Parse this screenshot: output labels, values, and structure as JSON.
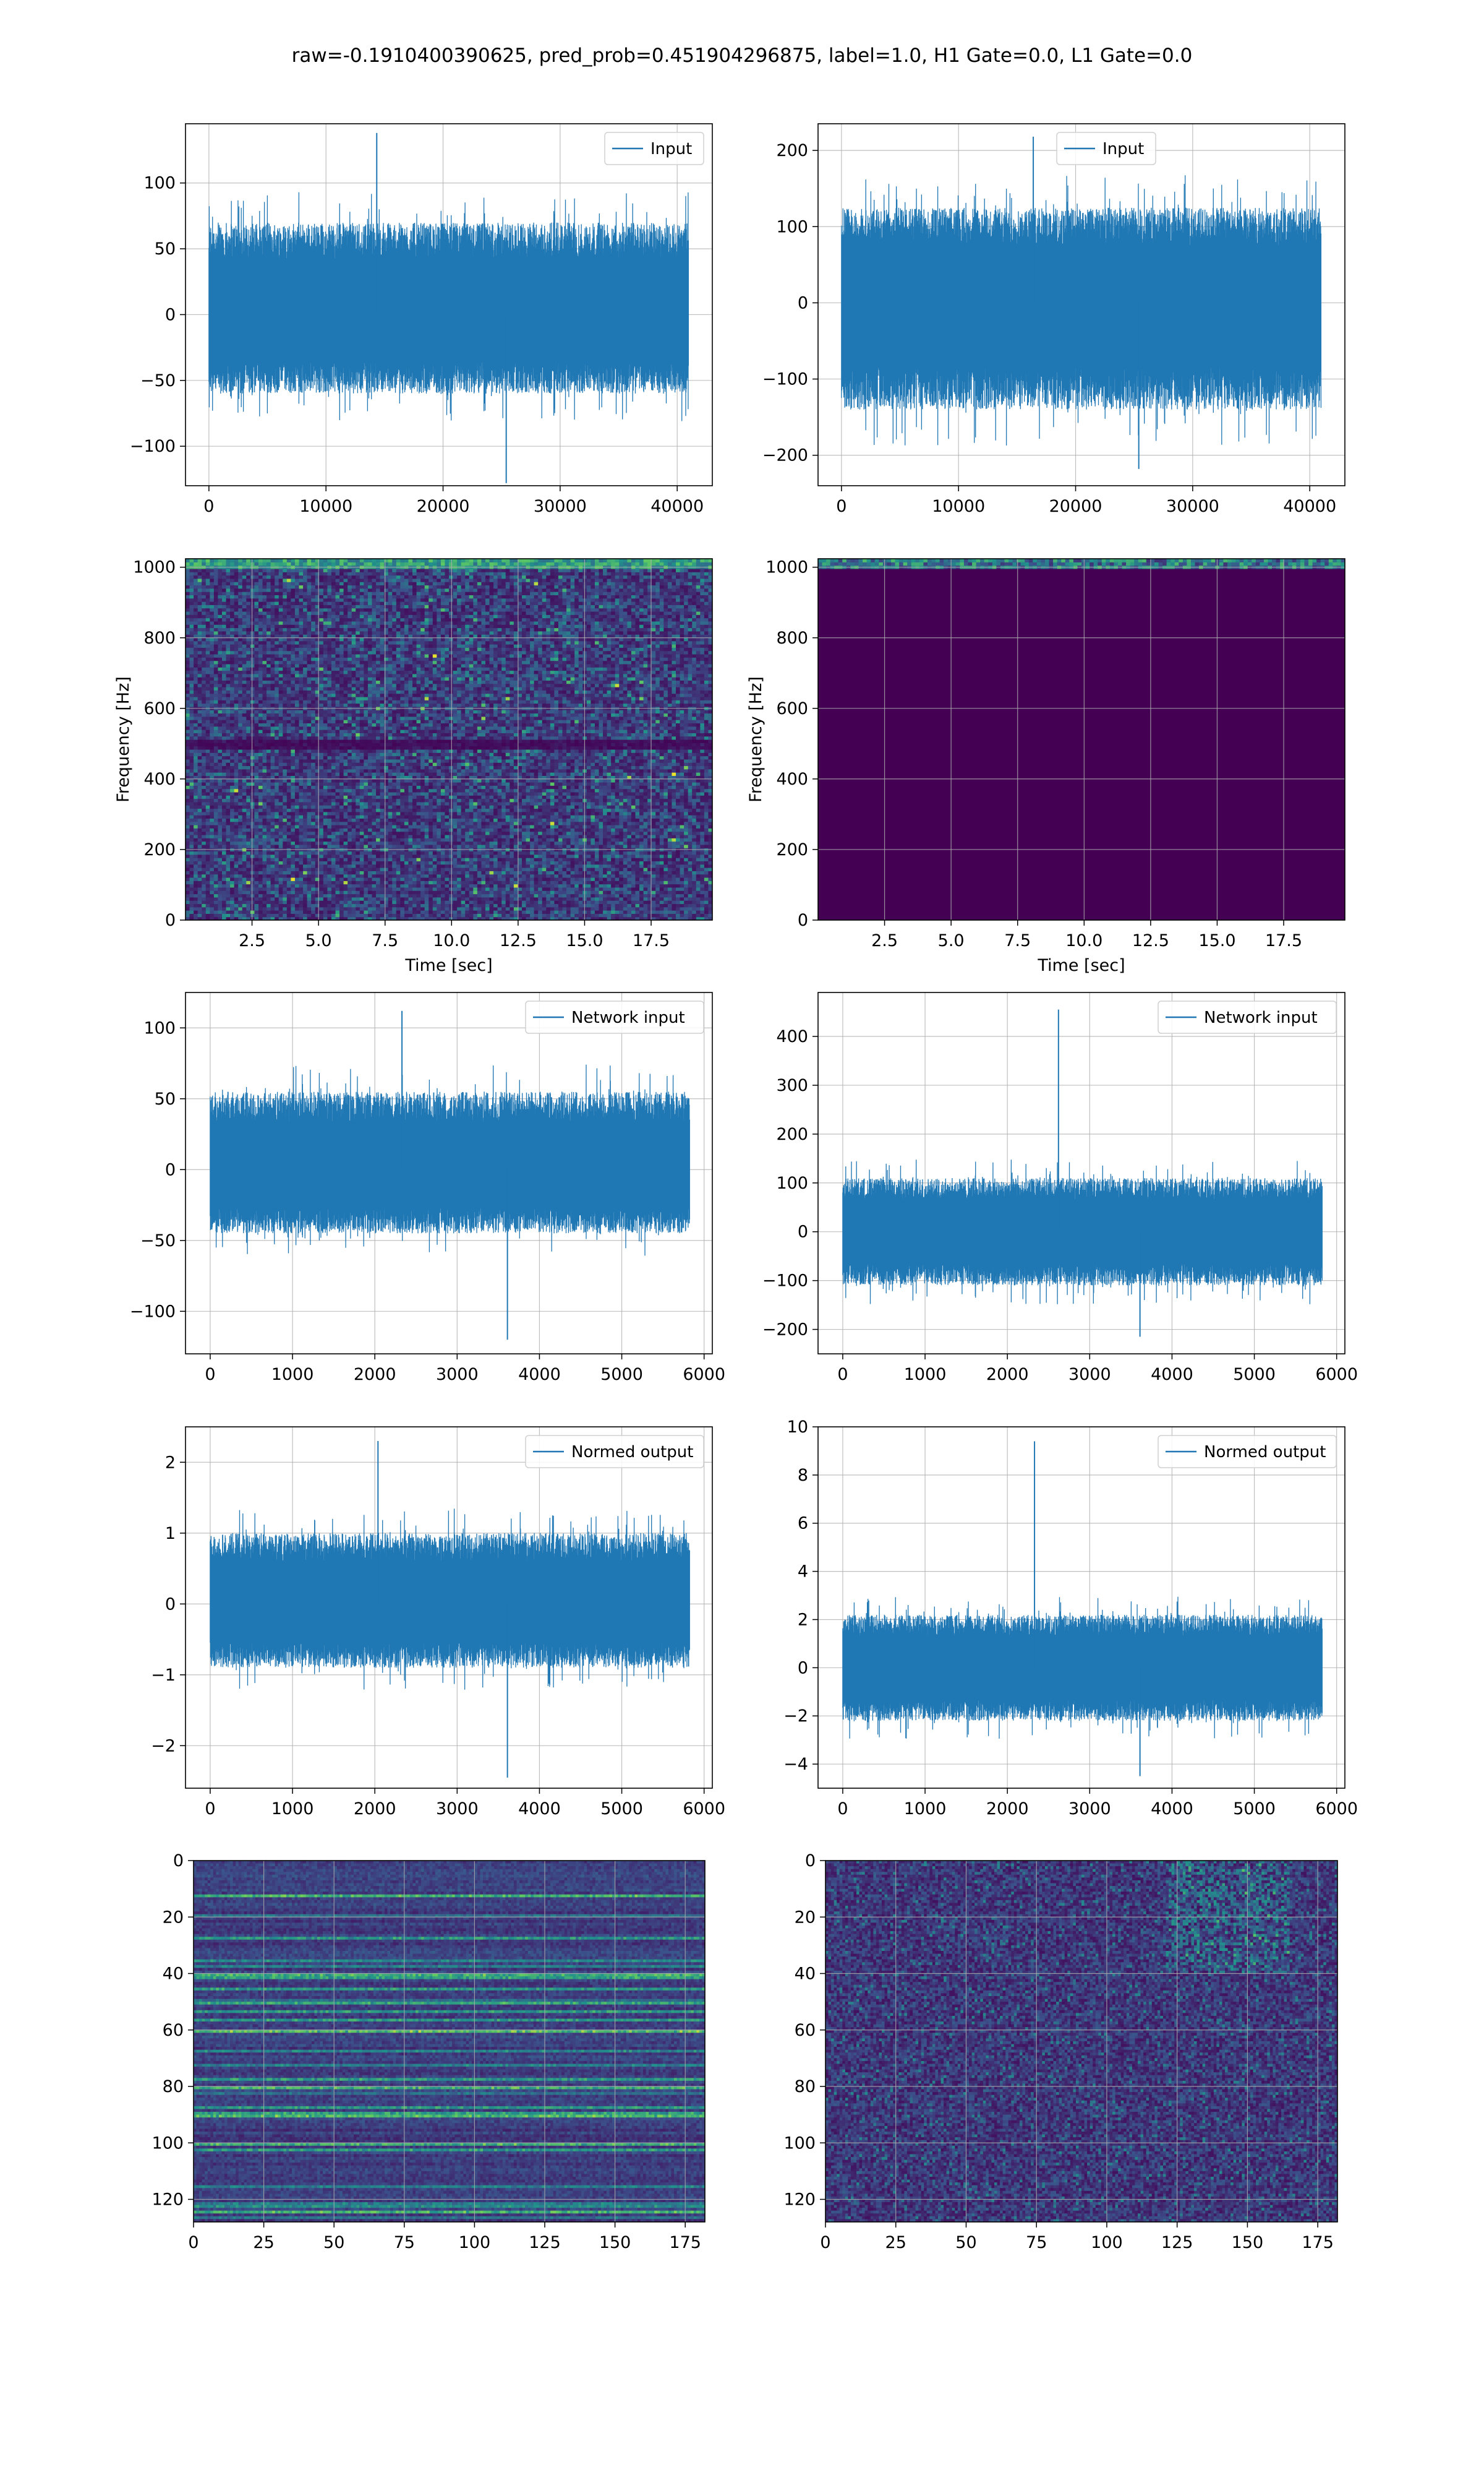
{
  "figure_title": "raw=-0.1910400390625, pred_prob=0.451904296875, label=1.0, H1 Gate=0.0, L1 Gate=0.0",
  "colors": {
    "line": "#1f77b4",
    "grid": "#b0b0b0",
    "viridis_low": "#440154",
    "viridis_mid": "#21918c",
    "viridis_high": "#fde725"
  },
  "chart_data": [
    {
      "id": "h1-input",
      "type": "line",
      "legend": "Input",
      "legend_pos": "top-right",
      "xlim": [
        -2000,
        43000
      ],
      "ylim": [
        -130,
        145
      ],
      "xticks": [
        0,
        10000,
        20000,
        30000,
        40000
      ],
      "yticks": [
        -100,
        -50,
        0,
        50,
        100
      ],
      "series": [
        {
          "x_range": [
            0,
            40960
          ],
          "envelope_typical": [
            -60,
            70
          ],
          "peak_max": 138,
          "peak_min": -128,
          "start_mean": 0,
          "end_mean": 0
        }
      ]
    },
    {
      "id": "l1-input",
      "type": "line",
      "legend": "Input",
      "legend_pos": "top-center",
      "xlim": [
        -2000,
        43000
      ],
      "ylim": [
        -240,
        235
      ],
      "xticks": [
        0,
        10000,
        20000,
        30000,
        40000
      ],
      "yticks": [
        -200,
        -100,
        0,
        100,
        200
      ],
      "series": [
        {
          "x_range": [
            0,
            40960
          ],
          "envelope_typical": [
            -140,
            125
          ],
          "peak_max": 218,
          "peak_min": -218
        }
      ]
    },
    {
      "id": "h1-spectrogram",
      "type": "heatmap",
      "xlabel": "Time [sec]",
      "ylabel": "Frequency [Hz]",
      "xlim": [
        0,
        19.8
      ],
      "ylim": [
        0,
        1024
      ],
      "xticks": [
        2.5,
        5.0,
        7.5,
        10.0,
        12.5,
        15.0,
        17.5
      ],
      "yticks": [
        0,
        200,
        400,
        600,
        800,
        1000
      ],
      "features": {
        "dark_band_hz": 500,
        "top_band_hz": 1010,
        "pattern": "speckled noise"
      }
    },
    {
      "id": "l1-spectrogram",
      "type": "heatmap",
      "xlabel": "Time [sec]",
      "ylabel": "Frequency [Hz]",
      "xlim": [
        0,
        19.8
      ],
      "ylim": [
        0,
        1024
      ],
      "xticks": [
        2.5,
        5.0,
        7.5,
        10.0,
        12.5,
        15.0,
        17.5
      ],
      "yticks": [
        0,
        200,
        400,
        600,
        800,
        1000
      ],
      "features": {
        "top_band_hz": 1010,
        "pattern": "uniform low"
      }
    },
    {
      "id": "h1-network-input",
      "type": "line",
      "legend": "Network input",
      "legend_pos": "top-right",
      "xlim": [
        -300,
        6100
      ],
      "ylim": [
        -130,
        125
      ],
      "xticks": [
        0,
        1000,
        2000,
        3000,
        4000,
        5000,
        6000
      ],
      "yticks": [
        -100,
        -50,
        0,
        50,
        100
      ],
      "series": [
        {
          "x_range": [
            0,
            5824
          ],
          "envelope_typical": [
            -45,
            55
          ],
          "peak_max": 112,
          "peak_min": -120
        }
      ]
    },
    {
      "id": "l1-network-input",
      "type": "line",
      "legend": "Network input",
      "legend_pos": "top-right",
      "xlim": [
        -300,
        6100
      ],
      "ylim": [
        -250,
        490
      ],
      "xticks": [
        0,
        1000,
        2000,
        3000,
        4000,
        5000,
        6000
      ],
      "yticks": [
        -200,
        -100,
        0,
        100,
        200,
        300,
        400
      ],
      "series": [
        {
          "x_range": [
            0,
            5824
          ],
          "envelope_typical": [
            -110,
            110
          ],
          "peak_max": 455,
          "peak_min": -215
        }
      ]
    },
    {
      "id": "h1-normed-output",
      "type": "line",
      "legend": "Normed output",
      "legend_pos": "top-right",
      "xlim": [
        -300,
        6100
      ],
      "ylim": [
        -2.6,
        2.5
      ],
      "xticks": [
        0,
        1000,
        2000,
        3000,
        4000,
        5000,
        6000
      ],
      "yticks": [
        -2,
        -1,
        0,
        1,
        2
      ],
      "series": [
        {
          "x_range": [
            0,
            5824
          ],
          "envelope_typical": [
            -0.9,
            1.0
          ],
          "peak_max": 2.3,
          "peak_min": -2.45
        }
      ]
    },
    {
      "id": "l1-normed-output",
      "type": "line",
      "legend": "Normed output",
      "legend_pos": "top-right",
      "xlim": [
        -300,
        6100
      ],
      "ylim": [
        -5.0,
        10.0
      ],
      "xticks": [
        0,
        1000,
        2000,
        3000,
        4000,
        5000,
        6000
      ],
      "yticks": [
        -4,
        -2,
        0,
        2,
        4,
        6,
        8,
        10
      ],
      "series": [
        {
          "x_range": [
            0,
            5824
          ],
          "envelope_typical": [
            -2.2,
            2.2
          ],
          "peak_max": 9.4,
          "peak_min": -4.5
        }
      ]
    },
    {
      "id": "h1-image",
      "type": "heatmap",
      "xlim": [
        0,
        182
      ],
      "ylim": [
        128,
        0
      ],
      "xticks": [
        0,
        25,
        50,
        75,
        100,
        125,
        150,
        175
      ],
      "yticks": [
        0,
        20,
        40,
        60,
        80,
        100,
        120
      ],
      "features": {
        "pattern": "horizontal streaks"
      }
    },
    {
      "id": "l1-image",
      "type": "heatmap",
      "xlim": [
        0,
        182
      ],
      "ylim": [
        128,
        0
      ],
      "xticks": [
        0,
        25,
        50,
        75,
        100,
        125,
        150,
        175
      ],
      "yticks": [
        0,
        20,
        40,
        60,
        80,
        100,
        120
      ],
      "features": {
        "pattern": "speckled"
      }
    }
  ]
}
